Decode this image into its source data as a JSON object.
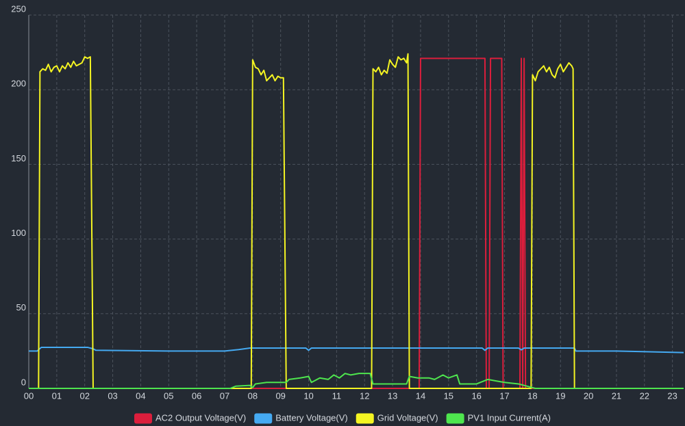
{
  "chart_data": {
    "type": "line",
    "xlim": [
      0,
      23.4
    ],
    "ylim": [
      0,
      250
    ],
    "xticks": [
      {
        "value": 0,
        "label": "00"
      },
      {
        "value": 1,
        "label": "01"
      },
      {
        "value": 2,
        "label": "02"
      },
      {
        "value": 3,
        "label": "03"
      },
      {
        "value": 4,
        "label": "04"
      },
      {
        "value": 5,
        "label": "05"
      },
      {
        "value": 6,
        "label": "06"
      },
      {
        "value": 7,
        "label": "07"
      },
      {
        "value": 8,
        "label": "08"
      },
      {
        "value": 9,
        "label": "09"
      },
      10,
      11,
      12,
      13,
      14,
      15,
      16,
      17,
      18,
      19,
      20,
      21,
      22,
      23
    ],
    "yticks": [
      0,
      50,
      100,
      150,
      200,
      250
    ],
    "grid": true,
    "legend": "bottom",
    "series": [
      {
        "name": "AC2 Output Voltage(V)",
        "color": "#dc1e3c",
        "x": [
          0,
          13.95,
          14.0,
          16.3,
          16.35,
          16.45,
          16.5,
          16.9,
          16.95,
          17.55,
          17.6,
          17.65,
          17.7,
          17.75,
          23.4
        ],
        "values": [
          0,
          0,
          221,
          221,
          0,
          0,
          221,
          221,
          0,
          0,
          221,
          0,
          221,
          0,
          0
        ]
      },
      {
        "name": "Battery Voltage(V)",
        "color": "#45aaf2",
        "x": [
          0,
          0.3,
          0.45,
          2.1,
          2.3,
          2.4,
          5,
          7,
          7.5,
          7.9,
          9.9,
          10,
          10.1,
          16.2,
          16.3,
          16.4,
          17.5,
          17.6,
          17.7,
          19.5,
          19.55,
          21,
          23.4
        ],
        "values": [
          25,
          25,
          27.5,
          27.5,
          26.5,
          25.5,
          25,
          25,
          26,
          27,
          27,
          25.5,
          27,
          27,
          25.5,
          27,
          27,
          25.8,
          27,
          27,
          25,
          25,
          24
        ]
      },
      {
        "name": "Grid Voltage(V)",
        "color": "#f5f522",
        "x": [
          0,
          0.35,
          0.4,
          0.5,
          0.6,
          0.7,
          0.8,
          0.9,
          1.0,
          1.1,
          1.2,
          1.3,
          1.4,
          1.5,
          1.6,
          1.7,
          1.8,
          1.9,
          2.0,
          2.1,
          2.2,
          2.3,
          7.95,
          8.0,
          8.1,
          8.2,
          8.3,
          8.4,
          8.5,
          8.6,
          8.7,
          8.8,
          8.9,
          9.0,
          9.1,
          9.2,
          12.25,
          12.3,
          12.4,
          12.5,
          12.6,
          12.7,
          12.8,
          12.9,
          13.0,
          13.1,
          13.2,
          13.3,
          13.4,
          13.5,
          13.55,
          13.6,
          17.95,
          18.0,
          18.1,
          18.2,
          18.3,
          18.4,
          18.5,
          18.6,
          18.7,
          18.8,
          18.9,
          19.0,
          19.1,
          19.2,
          19.3,
          19.4,
          19.45,
          19.5,
          23.4
        ],
        "values": [
          0,
          0,
          212,
          214,
          213,
          217,
          212,
          215,
          216,
          212,
          216,
          214,
          218,
          215,
          219,
          216,
          217,
          218,
          222,
          221,
          222,
          0,
          0,
          220,
          215,
          214,
          210,
          213,
          206,
          208,
          210,
          206,
          209,
          208,
          208,
          0,
          0,
          214,
          212,
          215,
          210,
          213,
          211,
          220,
          217,
          215,
          222,
          220,
          221,
          218,
          224,
          0,
          0,
          210,
          206,
          212,
          214,
          216,
          212,
          215,
          210,
          208,
          214,
          217,
          212,
          215,
          218,
          216,
          214,
          0,
          0
        ]
      },
      {
        "name": "PV1 Input Current(A)",
        "color": "#4ee64e",
        "x": [
          0,
          7.2,
          7.4,
          7.9,
          8.0,
          8.1,
          8.5,
          9.2,
          9.3,
          9.7,
          10.0,
          10.1,
          10.4,
          10.7,
          10.9,
          11.1,
          11.3,
          11.5,
          11.8,
          12.2,
          12.3,
          13.5,
          13.6,
          13.9,
          14.3,
          14.5,
          14.8,
          15.0,
          15.3,
          15.4,
          16.0,
          16.4,
          16.7,
          17.0,
          17.5,
          17.9,
          18.1,
          23.4
        ],
        "values": [
          0,
          0,
          1.5,
          2,
          0.5,
          3,
          4,
          4,
          6,
          7,
          8,
          4,
          7,
          6,
          9,
          7,
          10,
          9,
          10,
          10,
          3,
          3,
          8,
          7,
          7,
          6,
          9,
          7,
          9,
          3,
          3,
          6,
          5,
          4,
          3,
          1,
          0,
          0
        ]
      }
    ]
  }
}
